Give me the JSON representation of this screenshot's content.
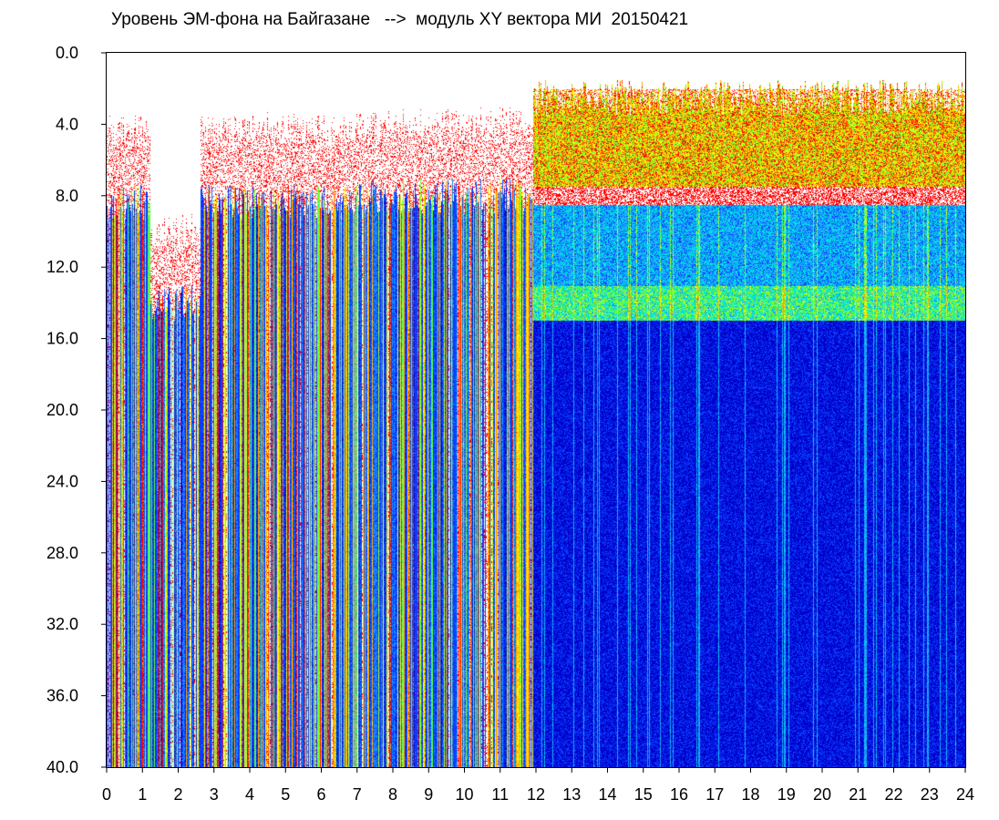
{
  "chart_data": {
    "type": "heatmap",
    "title": "Уровень ЭМ-фона на Байгазане   -->  модуль XY вектора МИ  20150421",
    "xlabel": "",
    "ylabel": "",
    "xlim": [
      0,
      24
    ],
    "ylim": [
      40,
      0
    ],
    "y_inverted": true,
    "x_ticks": [
      "0",
      "1",
      "2",
      "3",
      "4",
      "5",
      "6",
      "7",
      "8",
      "9",
      "10",
      "11",
      "12",
      "13",
      "14",
      "15",
      "16",
      "17",
      "18",
      "19",
      "20",
      "21",
      "22",
      "23",
      "24"
    ],
    "y_ticks": [
      "0.0",
      "4.0",
      "8.0",
      "12.0",
      "16.0",
      "20.0",
      "24.0",
      "28.0",
      "32.0",
      "36.0",
      "40.0"
    ],
    "grid": false,
    "legend": "none",
    "colormap": [
      "#0000c8",
      "#0a3cff",
      "#1e90ff",
      "#00e5e5",
      "#66ff33",
      "#ffff00",
      "#ffa500",
      "#ff0000"
    ],
    "regions": [
      {
        "x": [
          0,
          7.2
        ],
        "pattern": "vertical streaks",
        "noise_upper_edge_y": 8.3
      },
      {
        "x": [
          1.2,
          2.6
        ],
        "pattern": "sparse streaks",
        "noise_upper_edge_y": 14.0
      },
      {
        "x": [
          7.2,
          11.9
        ],
        "pattern": "streaks with gaps",
        "noise_upper_edge_y": 8.0
      },
      {
        "x": [
          11.9,
          24
        ],
        "pattern": "dense band",
        "noise_upper_edge_y": 2.5,
        "gap_y": [
          7.5,
          8.5
        ],
        "transition_y": 15.0
      }
    ]
  }
}
